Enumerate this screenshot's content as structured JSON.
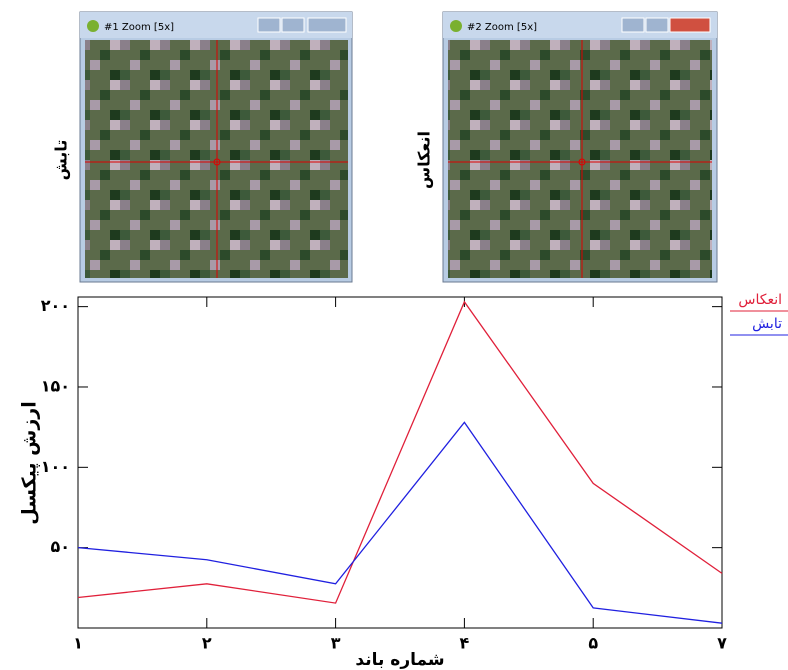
{
  "panels": [
    {
      "title": "#1 Zoom [5x]",
      "side_label": "تابش"
    },
    {
      "title": "#2 Zoom [5x]",
      "side_label": "انعکاس"
    }
  ],
  "chart_data": {
    "type": "line",
    "x_label": "شماره باند",
    "y_label": "ارزش پیکسل",
    "categories": [
      "۱",
      "۲",
      "۳",
      "۴",
      "۵",
      "۷"
    ],
    "series": [
      {
        "name": "انعکاس",
        "color": "#e0203a",
        "values": [
          19,
          27.5,
          15.5,
          203,
          90,
          34
        ]
      },
      {
        "name": "تابش",
        "color": "#2020e0",
        "values": [
          50,
          42.5,
          27.5,
          128,
          12.5,
          3
        ]
      }
    ],
    "ylim": [
      0,
      206
    ],
    "yticks": [
      {
        "value": 50,
        "label": "۵۰"
      },
      {
        "value": 100,
        "label": "۱۰۰"
      },
      {
        "value": 150,
        "label": "۱۵۰"
      },
      {
        "value": 200,
        "label": "۲۰۰"
      }
    ],
    "legend": "top-right"
  }
}
